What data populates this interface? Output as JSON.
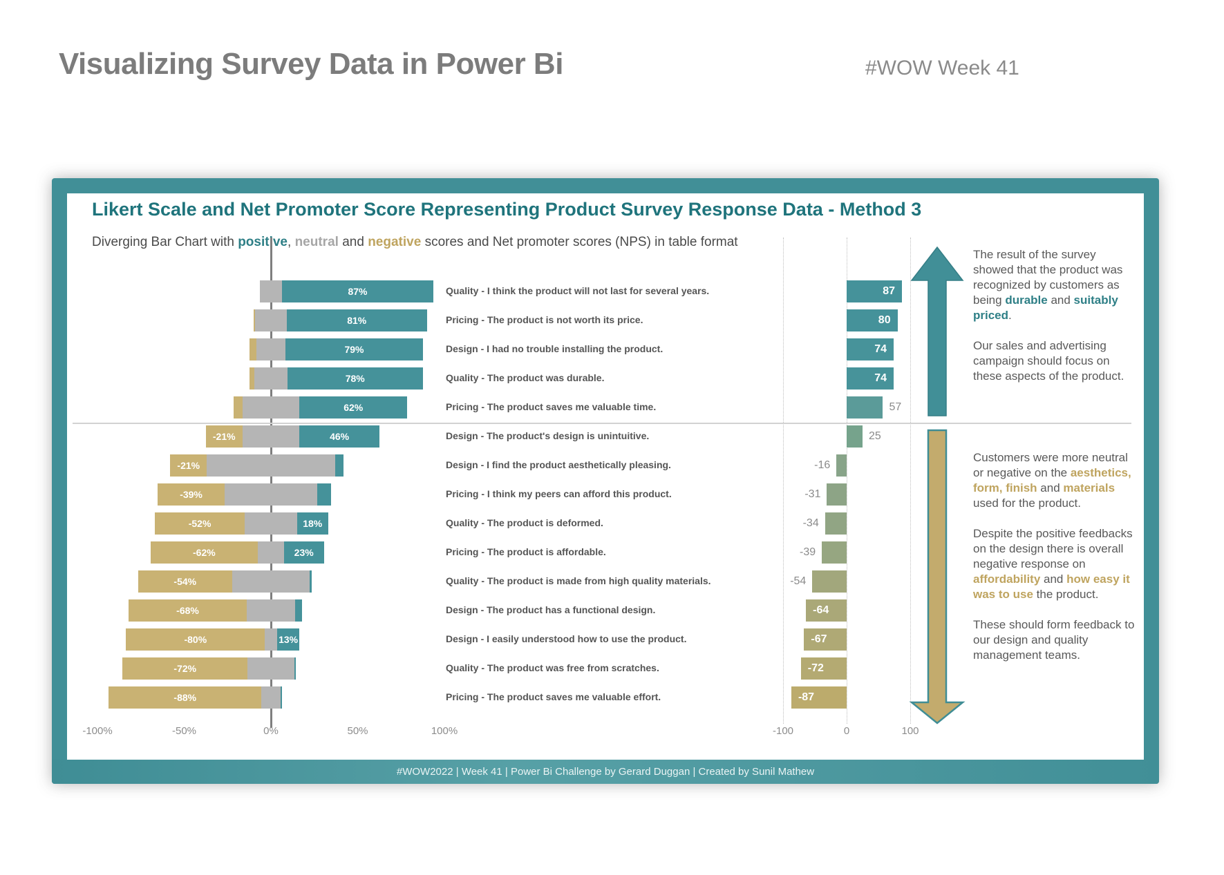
{
  "page": {
    "title": "Visualizing Survey Data in Power Bi",
    "badge": "#WOW Week 41"
  },
  "card": {
    "title": "Likert Scale and Net Promoter Score Representing Product Survey Response Data - Method 3",
    "subtitle_parts": [
      {
        "t": "Diverging Bar Chart with "
      },
      {
        "t": "positive",
        "s": "teal"
      },
      {
        "t": ", "
      },
      {
        "t": "neutral",
        "s": "gray"
      },
      {
        "t": " and "
      },
      {
        "t": "negative",
        "s": "gold"
      },
      {
        "t": " scores and Net promoter scores (NPS) in table format"
      }
    ],
    "footer": "#WOW2022 | Week 41 | Power Bi Challenge by Gerard Duggan | Created by Sunil Mathew"
  },
  "chart_data": {
    "type": "bar",
    "subtype": "diverging-likert-with-nps-table",
    "likert_axis": {
      "tick_values": [
        -100,
        -50,
        0,
        50,
        100
      ],
      "tick_labels": [
        "-100%",
        "-50%",
        "0%",
        "50%",
        "100%"
      ],
      "range": [
        -100,
        100
      ],
      "grid": "zero-line"
    },
    "nps_axis": {
      "tick_values": [
        -100,
        0,
        100
      ],
      "tick_labels": [
        "-100",
        "0",
        "100"
      ],
      "range": [
        -100,
        100
      ],
      "grid": "dotted"
    },
    "colors": {
      "positive_teal": "#45929a",
      "neutral_gray": "#b5b5b5",
      "negative_gold": "#c9b273",
      "frame_teal": "#418f97",
      "title_teal": "#1f747c",
      "accent_teal": "#2e7f86",
      "accent_gold": "#bfa45f",
      "axis_gray": "#8c8c8c",
      "up_arrow": "#418f97",
      "down_arrow_fill": "#c3ab6d",
      "down_arrow_stroke": "#3f8d95"
    },
    "rows": [
      {
        "q": "Quality - I think the product will not last for several years.",
        "neg": 0,
        "neutral": 13,
        "pos": 87,
        "neg_label": "",
        "pos_label": "87%",
        "nps": 87,
        "nps_color": "#45929a",
        "nps_label_pos": "inside"
      },
      {
        "q": "Pricing - The product is not worth its price.",
        "neg": 1,
        "neutral": 18,
        "pos": 81,
        "neg_label": "",
        "pos_label": "81%",
        "nps": 80,
        "nps_color": "#45929a",
        "nps_label_pos": "inside"
      },
      {
        "q": "Design - I had no trouble installing the product.",
        "neg": 4,
        "neutral": 17,
        "pos": 79,
        "neg_label": "",
        "pos_label": "79%",
        "nps": 74,
        "nps_color": "#47939a",
        "nps_label_pos": "inside"
      },
      {
        "q": "Quality - The product was durable.",
        "neg": 3,
        "neutral": 19,
        "pos": 78,
        "neg_label": "",
        "pos_label": "78%",
        "nps": 74,
        "nps_color": "#47939a",
        "nps_label_pos": "inside"
      },
      {
        "q": "Pricing - The product saves me valuable time.",
        "neg": 5,
        "neutral": 33,
        "pos": 62,
        "neg_label": "",
        "pos_label": "62%",
        "nps": 57,
        "nps_color": "#5b9b99",
        "nps_label_pos": "outside"
      },
      {
        "q": "Design - The product's design is unintuitive.",
        "neg": 21,
        "neutral": 33,
        "pos": 46,
        "neg_label": "-21%",
        "pos_label": "46%",
        "nps": 25,
        "nps_color": "#76a38c",
        "nps_label_pos": "outside"
      },
      {
        "q": "Design - I find the product aesthetically pleasing.",
        "neg": 21,
        "neutral": 74,
        "pos": 5,
        "neg_label": "-21%",
        "pos_label": "",
        "nps": -16,
        "nps_color": "#88a489",
        "nps_label_pos": "outside"
      },
      {
        "q": "Pricing - I think my peers can afford this product.",
        "neg": 39,
        "neutral": 53,
        "pos": 8,
        "neg_label": "-39%",
        "pos_label": "",
        "nps": -31,
        "nps_color": "#8da486",
        "nps_label_pos": "outside"
      },
      {
        "q": "Quality - The product is deformed.",
        "neg": 52,
        "neutral": 30,
        "pos": 18,
        "neg_label": "-52%",
        "pos_label": "18%",
        "nps": -34,
        "nps_color": "#91a584",
        "nps_label_pos": "outside"
      },
      {
        "q": "Pricing - The product is affordable.",
        "neg": 62,
        "neutral": 15,
        "pos": 23,
        "neg_label": "-62%",
        "pos_label": "23%",
        "nps": -39,
        "nps_color": "#96a681",
        "nps_label_pos": "outside"
      },
      {
        "q": "Quality - The product is made from high quality materials.",
        "neg": 54,
        "neutral": 45,
        "pos": 1,
        "neg_label": "-54%",
        "pos_label": "",
        "nps": -54,
        "nps_color": "#a2a77c",
        "nps_label_pos": "outside"
      },
      {
        "q": "Design - The product has a functional design.",
        "neg": 68,
        "neutral": 28,
        "pos": 4,
        "neg_label": "-68%",
        "pos_label": "",
        "nps": -64,
        "nps_color": "#aaa878",
        "nps_label_pos": "inside"
      },
      {
        "q": "Design - I easily understood how to use the product.",
        "neg": 80,
        "neutral": 7,
        "pos": 13,
        "neg_label": "-80%",
        "pos_label": "13%",
        "nps": -67,
        "nps_color": "#afa975",
        "nps_label_pos": "inside"
      },
      {
        "q": "Quality - The product was free from scratches.",
        "neg": 72,
        "neutral": 27,
        "pos": 1,
        "neg_label": "-72%",
        "pos_label": "",
        "nps": -72,
        "nps_color": "#b4aa72",
        "nps_label_pos": "inside"
      },
      {
        "q": "Pricing - The product saves me valuable effort.",
        "neg": 88,
        "neutral": 11,
        "pos": 1,
        "neg_label": "-88%",
        "pos_label": "",
        "nps": -87,
        "nps_color": "#bcab6c",
        "nps_label_pos": "inside"
      }
    ]
  },
  "annotations": {
    "upper": [
      [
        {
          "t": "The result of the survey showed that the product was recognized by customers as being "
        },
        {
          "t": "durable",
          "s": "teal"
        },
        {
          "t": " and "
        },
        {
          "t": "suitably priced",
          "s": "teal"
        },
        {
          "t": "."
        }
      ],
      [
        {
          "t": "Our sales and advertising campaign should focus on these aspects of the product."
        }
      ]
    ],
    "lower": [
      [
        {
          "t": "Customers were more neutral or negative on the "
        },
        {
          "t": "aesthetics, form, finish",
          "s": "gold"
        },
        {
          "t": " and "
        },
        {
          "t": "materials",
          "s": "gold"
        },
        {
          "t": " used for the product."
        }
      ],
      [
        {
          "t": "Despite the positive feedbacks on the design there is overall negative response on "
        },
        {
          "t": "affordability",
          "s": "gold"
        },
        {
          "t": " and "
        },
        {
          "t": "how easy it was to use",
          "s": "gold"
        },
        {
          "t": " the product."
        }
      ],
      [
        {
          "t": "These should form feedback to our design and quality management teams."
        }
      ]
    ]
  }
}
